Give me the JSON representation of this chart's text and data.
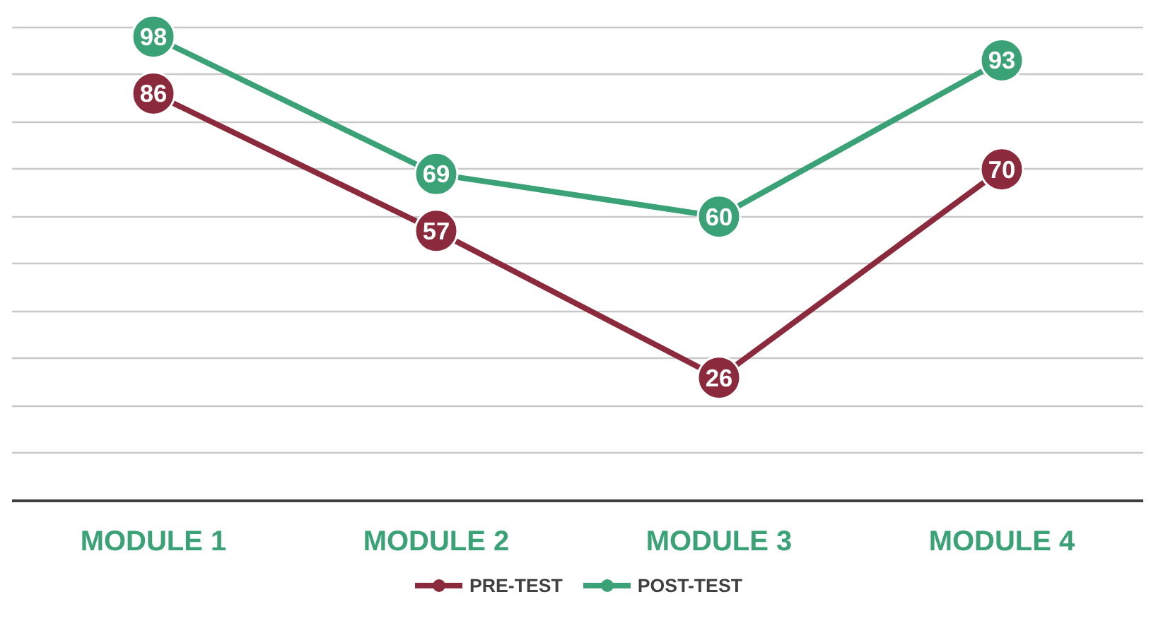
{
  "chart_data": {
    "type": "line",
    "categories": [
      "MODULE 1",
      "MODULE 2",
      "MODULE 3",
      "MODULE 4"
    ],
    "series": [
      {
        "name": "PRE-TEST",
        "color": "#8b2a3c",
        "values": [
          86,
          57,
          26,
          70
        ]
      },
      {
        "name": "POST-TEST",
        "color": "#3aa276",
        "values": [
          98,
          69,
          60,
          93
        ]
      }
    ],
    "yticks": [
      {
        "value": 0,
        "label": null
      },
      {
        "value": 10,
        "label": null
      },
      {
        "value": 20,
        "label": null
      },
      {
        "value": 30,
        "label": null
      },
      {
        "value": 40,
        "label": null
      },
      {
        "value": 50,
        "label": null
      },
      {
        "value": 60,
        "label": null
      },
      {
        "value": 70,
        "label": null
      },
      {
        "value": 80,
        "label": null
      },
      {
        "value": 90,
        "label": null
      },
      {
        "value": 100,
        "label": null
      }
    ],
    "tick_labels": "x",
    "grid": "y",
    "legend": "bottom",
    "marker": "circle",
    "line_style": "solid",
    "data_labels": true
  }
}
